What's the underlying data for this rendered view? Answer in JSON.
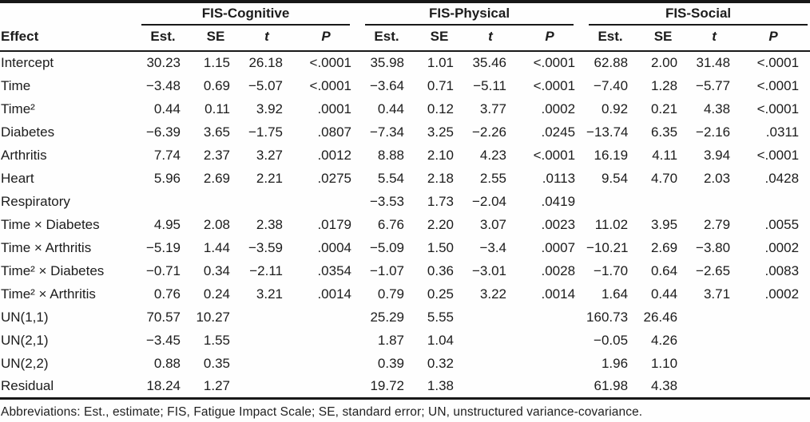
{
  "table": {
    "effect_header": "Effect",
    "groups": [
      {
        "label": "FIS-Cognitive"
      },
      {
        "label": "FIS-Physical"
      },
      {
        "label": "FIS-Social"
      }
    ],
    "sub_headers": [
      "Est.",
      "SE",
      "t",
      "P"
    ],
    "rows": [
      {
        "effect": "Intercept",
        "cells": [
          "30.23",
          "1.15",
          "26.18",
          "<.0001",
          "35.98",
          "1.01",
          "35.46",
          "<.0001",
          "62.88",
          "2.00",
          "31.48",
          "<.0001"
        ]
      },
      {
        "effect": "Time",
        "cells": [
          "−3.48",
          "0.69",
          "−5.07",
          "<.0001",
          "−3.64",
          "0.71",
          "−5.11",
          "<.0001",
          "−7.40",
          "1.28",
          "−5.77",
          "<.0001"
        ]
      },
      {
        "effect": "Time²",
        "cells": [
          "0.44",
          "0.11",
          "3.92",
          ".0001",
          "0.44",
          "0.12",
          "3.77",
          ".0002",
          "0.92",
          "0.21",
          "4.38",
          "<.0001"
        ]
      },
      {
        "effect": "Diabetes",
        "cells": [
          "−6.39",
          "3.65",
          "−1.75",
          ".0807",
          "−7.34",
          "3.25",
          "−2.26",
          ".0245",
          "−13.74",
          "6.35",
          "−2.16",
          ".0311"
        ]
      },
      {
        "effect": "Arthritis",
        "cells": [
          "7.74",
          "2.37",
          "3.27",
          ".0012",
          "8.88",
          "2.10",
          "4.23",
          "<.0001",
          "16.19",
          "4.11",
          "3.94",
          "<.0001"
        ]
      },
      {
        "effect": "Heart",
        "cells": [
          "5.96",
          "2.69",
          "2.21",
          ".0275",
          "5.54",
          "2.18",
          "2.55",
          ".0113",
          "9.54",
          "4.70",
          "2.03",
          ".0428"
        ]
      },
      {
        "effect": "Respiratory",
        "cells": [
          "",
          "",
          "",
          "",
          "−3.53",
          "1.73",
          "−2.04",
          ".0419",
          "",
          "",
          "",
          ""
        ]
      },
      {
        "effect": "Time × Diabetes",
        "cells": [
          "4.95",
          "2.08",
          "2.38",
          ".0179",
          "6.76",
          "2.20",
          "3.07",
          ".0023",
          "11.02",
          "3.95",
          "2.79",
          ".0055"
        ]
      },
      {
        "effect": "Time × Arthritis",
        "cells": [
          "−5.19",
          "1.44",
          "−3.59",
          ".0004",
          "−5.09",
          "1.50",
          "−3.4",
          ".0007",
          "−10.21",
          "2.69",
          "−3.80",
          ".0002"
        ]
      },
      {
        "effect": "Time² × Diabetes",
        "cells": [
          "−0.71",
          "0.34",
          "−2.11",
          ".0354",
          "−1.07",
          "0.36",
          "−3.01",
          ".0028",
          "−1.70",
          "0.64",
          "−2.65",
          ".0083"
        ]
      },
      {
        "effect": "Time² × Arthritis",
        "cells": [
          "0.76",
          "0.24",
          "3.21",
          ".0014",
          "0.79",
          "0.25",
          "3.22",
          ".0014",
          "1.64",
          "0.44",
          "3.71",
          ".0002"
        ]
      },
      {
        "effect": "UN(1,1)",
        "cells": [
          "70.57",
          "10.27",
          "",
          "",
          "25.29",
          "5.55",
          "",
          "",
          "160.73",
          "26.46",
          "",
          ""
        ]
      },
      {
        "effect": "UN(2,1)",
        "cells": [
          "−3.45",
          "1.55",
          "",
          "",
          "1.87",
          "1.04",
          "",
          "",
          "−0.05",
          "4.26",
          "",
          ""
        ]
      },
      {
        "effect": "UN(2,2)",
        "cells": [
          "0.88",
          "0.35",
          "",
          "",
          "0.39",
          "0.32",
          "",
          "",
          "1.96",
          "1.10",
          "",
          ""
        ]
      },
      {
        "effect": "Residual",
        "cells": [
          "18.24",
          "1.27",
          "",
          "",
          "19.72",
          "1.38",
          "",
          "",
          "61.98",
          "4.38",
          "",
          ""
        ]
      }
    ],
    "footnote": "Abbreviations: Est., estimate; FIS, Fatigue Impact Scale; SE, standard error; UN, unstructured variance-covariance."
  }
}
